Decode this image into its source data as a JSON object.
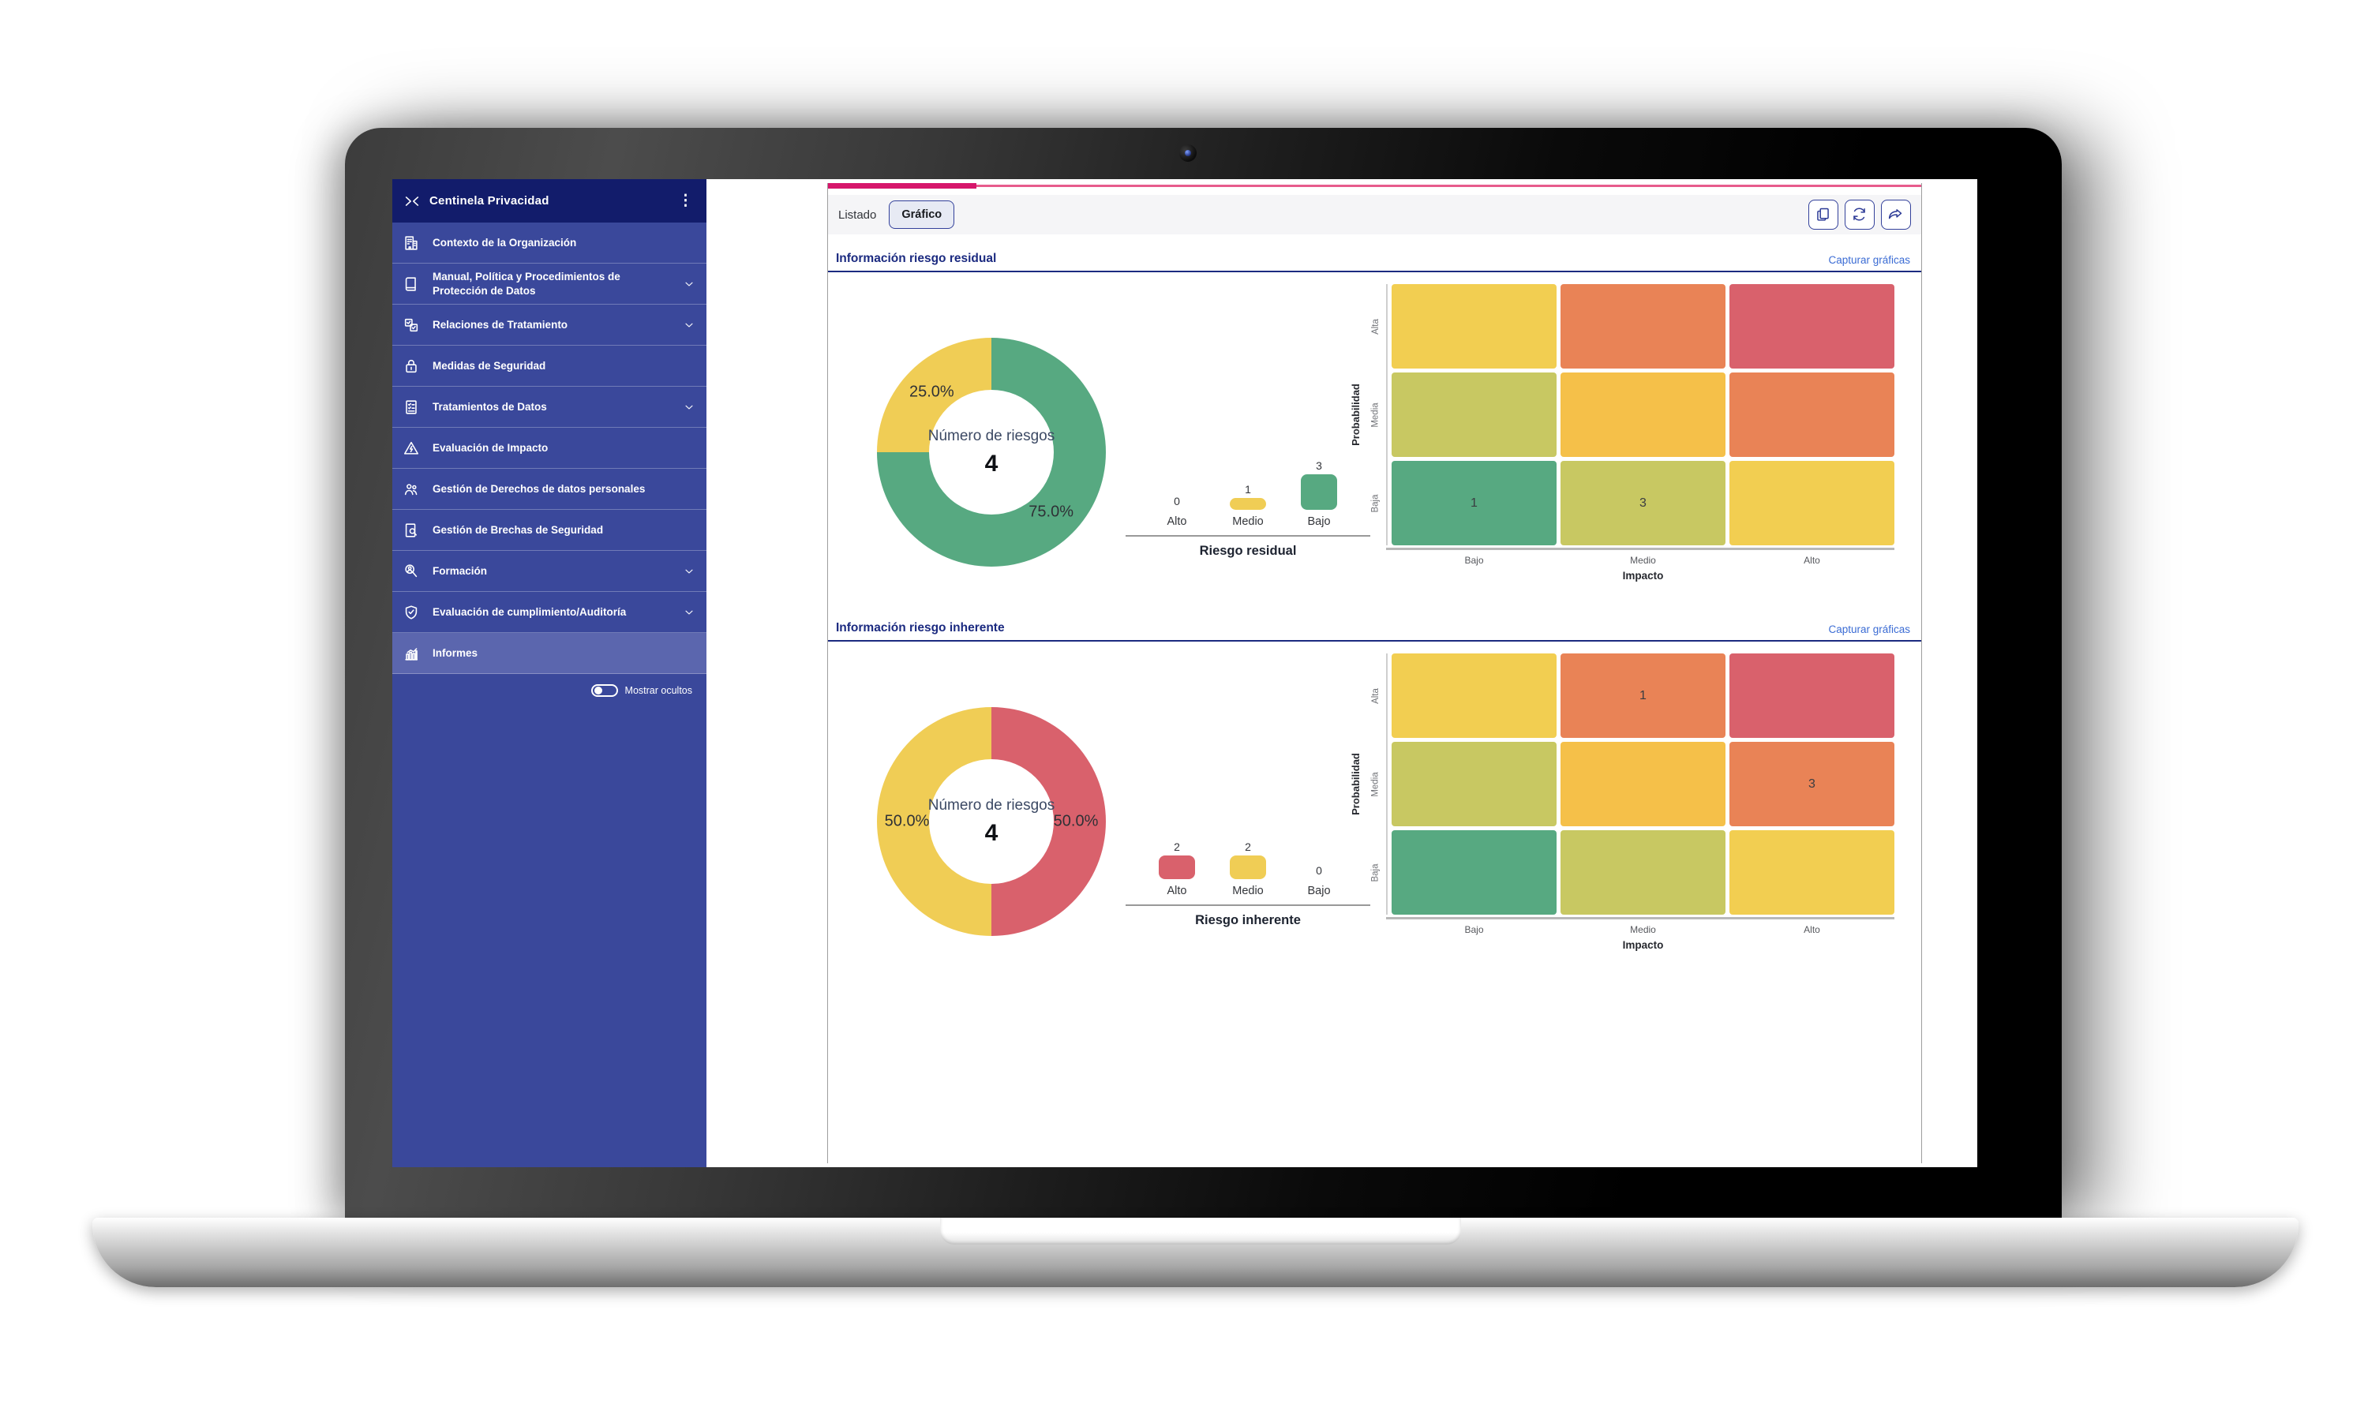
{
  "app": {
    "title": "Centinela Privacidad"
  },
  "sidebar": {
    "items": [
      {
        "label": "Contexto de la Organización",
        "icon": "building",
        "expandable": false,
        "selected": false
      },
      {
        "label": "Manual, Política y Procedimientos de Protección de Datos",
        "icon": "book",
        "expandable": true,
        "selected": false
      },
      {
        "label": "Relaciones de Tratamiento",
        "icon": "relations",
        "expandable": true,
        "selected": false
      },
      {
        "label": "Medidas de Seguridad",
        "icon": "lock",
        "expandable": false,
        "selected": false
      },
      {
        "label": "Tratamientos de Datos",
        "icon": "doc-list",
        "expandable": true,
        "selected": false
      },
      {
        "label": "Evaluación de Impacto",
        "icon": "warning",
        "expandable": false,
        "selected": false
      },
      {
        "label": "Gestión de Derechos de datos personales",
        "icon": "people",
        "expandable": false,
        "selected": false
      },
      {
        "label": "Gestión de Brechas de Seguridad",
        "icon": "doc-search",
        "expandable": false,
        "selected": false
      },
      {
        "label": "Formación",
        "icon": "person-search",
        "expandable": true,
        "selected": false
      },
      {
        "label": "Evaluación de cumplimiento/Auditoría",
        "icon": "shield-check",
        "expandable": true,
        "selected": false
      },
      {
        "label": "Informes",
        "icon": "bar-chart",
        "expandable": false,
        "selected": true
      }
    ],
    "toggle_label": "Mostrar ocultos",
    "toggle_on": false
  },
  "toolbar": {
    "tabs": [
      {
        "label": "Listado",
        "selected": false
      },
      {
        "label": "Gráfico",
        "selected": true
      }
    ],
    "actions": [
      {
        "name": "copy",
        "icon": "copy"
      },
      {
        "name": "refresh",
        "icon": "refresh"
      },
      {
        "name": "share",
        "icon": "share"
      }
    ]
  },
  "sections": [
    {
      "id": "residual",
      "title": "Información riesgo residual",
      "capture_link": "Capturar gráficas"
    },
    {
      "id": "inherente",
      "title": "Información riesgo inherente",
      "capture_link": "Capturar gráficas"
    }
  ],
  "chart_data": [
    {
      "id": "residual-donut",
      "section": "residual",
      "type": "pie",
      "center_label": "Número de riesgos",
      "center_value": "4",
      "slices": [
        {
          "name": "Bajo",
          "value": 75.0,
          "label": "75.0%",
          "color": "#57A981"
        },
        {
          "name": "Medio",
          "value": 25.0,
          "label": "25.0%",
          "color": "#F0CD55"
        }
      ]
    },
    {
      "id": "residual-bars",
      "section": "residual",
      "type": "bar",
      "title": "Riesgo residual",
      "categories": [
        "Alto",
        "Medio",
        "Bajo"
      ],
      "values": [
        0,
        1,
        3
      ],
      "colors": [
        "#D9616C",
        "#F0CD55",
        "#57A981"
      ]
    },
    {
      "id": "residual-heatmap",
      "section": "residual",
      "type": "heatmap",
      "xlabel": "Impacto",
      "ylabel": "Probabilidad",
      "x_categories": [
        "Bajo",
        "Medio",
        "Alto"
      ],
      "y_categories": [
        "Alta",
        "Media",
        "Baja"
      ],
      "values": [
        [
          null,
          null,
          null
        ],
        [
          null,
          null,
          null
        ],
        [
          1,
          3,
          null
        ]
      ],
      "cell_colors": [
        [
          "#F2CE51",
          "#E98356",
          "#D9616C"
        ],
        [
          "#C8C862",
          "#F5C049",
          "#E98356"
        ],
        [
          "#57A981",
          "#C8C862",
          "#F2CE51"
        ]
      ]
    },
    {
      "id": "inherente-donut",
      "section": "inherente",
      "type": "pie",
      "center_label": "Número de riesgos",
      "center_value": "4",
      "slices": [
        {
          "name": "Alto",
          "value": 50.0,
          "label": "50.0%",
          "color": "#D9616C"
        },
        {
          "name": "Medio",
          "value": 50.0,
          "label": "50.0%",
          "color": "#F0CD55"
        }
      ]
    },
    {
      "id": "inherente-bars",
      "section": "inherente",
      "type": "bar",
      "title": "Riesgo inherente",
      "categories": [
        "Alto",
        "Medio",
        "Bajo"
      ],
      "values": [
        2,
        2,
        0
      ],
      "colors": [
        "#D9616C",
        "#F0CD55",
        "#57A981"
      ]
    },
    {
      "id": "inherente-heatmap",
      "section": "inherente",
      "type": "heatmap",
      "xlabel": "Impacto",
      "ylabel": "Probabilidad",
      "x_categories": [
        "Bajo",
        "Medio",
        "Alto"
      ],
      "y_categories": [
        "Alta",
        "Media",
        "Baja"
      ],
      "values": [
        [
          null,
          1,
          null
        ],
        [
          null,
          null,
          3
        ],
        [
          null,
          null,
          null
        ]
      ],
      "cell_colors": [
        [
          "#F2CE51",
          "#E98356",
          "#D9616C"
        ],
        [
          "#C8C862",
          "#F5C049",
          "#E98356"
        ],
        [
          "#57A981",
          "#C8C862",
          "#F2CE51"
        ]
      ]
    }
  ],
  "colors": {
    "sidebar_bg": "#3A489B",
    "sidebar_header_bg": "#121C6B",
    "sidebar_selected_bg": "#5B66AE",
    "accent_navy": "#1B2A80",
    "link_blue": "#3B6CD4",
    "tab_ink_pink": "#D6166B",
    "tab_line_pink": "#E75B8C",
    "risk_green": "#57A981",
    "risk_yellow": "#F0CD55",
    "risk_red": "#D9616C",
    "risk_orange": "#E98356",
    "risk_olive": "#C8C862",
    "risk_amber": "#F5C049"
  }
}
